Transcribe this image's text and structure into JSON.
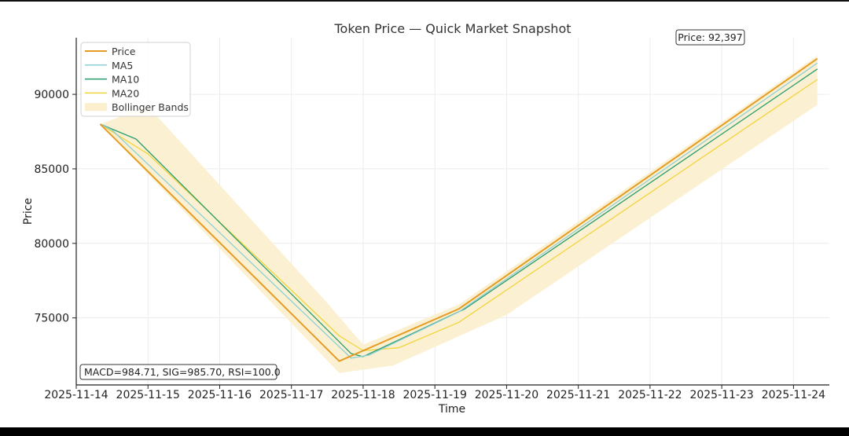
{
  "chart_data": {
    "type": "line",
    "title": "Token Price — Quick Market Snapshot",
    "xlabel": "Time",
    "ylabel": "Price",
    "xlim": [
      "2025-11-14",
      "2025-11-24T12:00"
    ],
    "ylim": [
      70500,
      93800
    ],
    "x_ticks": [
      "2025-11-14",
      "2025-11-15",
      "2025-11-16",
      "2025-11-17",
      "2025-11-18",
      "2025-11-19",
      "2025-11-20",
      "2025-11-21",
      "2025-11-22",
      "2025-11-23",
      "2025-11-24"
    ],
    "y_ticks": [
      75000,
      80000,
      85000,
      90000
    ],
    "grid": true,
    "legend_position": "top-left",
    "series": [
      {
        "name": "Price",
        "color": "#e69c24",
        "points": [
          [
            "2025-11-14T08:00",
            88000
          ],
          [
            "2025-11-17T16:00",
            72100
          ],
          [
            "2025-11-19T08:00",
            75600
          ],
          [
            "2025-11-24T08:00",
            92397
          ]
        ]
      },
      {
        "name": "MA5",
        "color": "#8ecfd8",
        "points": [
          [
            "2025-11-14T08:00",
            88000
          ],
          [
            "2025-11-14T12:00",
            87600
          ],
          [
            "2025-11-17T20:00",
            72300
          ],
          [
            "2025-11-18T02:00",
            72500
          ],
          [
            "2025-11-19T08:00",
            75400
          ],
          [
            "2025-11-24T08:00",
            92100
          ]
        ]
      },
      {
        "name": "MA10",
        "color": "#2a9d6e",
        "points": [
          [
            "2025-11-14T08:00",
            88000
          ],
          [
            "2025-11-14T20:00",
            87000
          ],
          [
            "2025-11-17T20:00",
            72600
          ],
          [
            "2025-11-18T00:00",
            72400
          ],
          [
            "2025-11-19T10:00",
            75600
          ],
          [
            "2025-11-24T08:00",
            91700
          ]
        ]
      },
      {
        "name": "MA20",
        "color": "#f2d43c",
        "points": [
          [
            "2025-11-14T08:00",
            88000
          ],
          [
            "2025-11-15T00:00",
            86000
          ],
          [
            "2025-11-17T16:00",
            73800
          ],
          [
            "2025-11-18T00:00",
            72800
          ],
          [
            "2025-11-18T12:00",
            73000
          ],
          [
            "2025-11-19T08:00",
            74700
          ],
          [
            "2025-11-24T08:00",
            91000
          ]
        ]
      }
    ],
    "bands": {
      "name": "Bollinger Bands",
      "color": "#fbefcd",
      "upper": [
        [
          "2025-11-14T08:00",
          88000
        ],
        [
          "2025-11-15T00:00",
          89200
        ],
        [
          "2025-11-17T12:00",
          76000
        ],
        [
          "2025-11-18T00:00",
          73200
        ],
        [
          "2025-11-19T08:00",
          75900
        ],
        [
          "2025-11-24T08:00",
          92600
        ]
      ],
      "lower": [
        [
          "2025-11-24T08:00",
          89300
        ],
        [
          "2025-11-20T00:00",
          75200
        ],
        [
          "2025-11-18T10:00",
          71800
        ],
        [
          "2025-11-17T16:00",
          71300
        ],
        [
          "2025-11-14T08:00",
          88000
        ]
      ]
    },
    "annotations": {
      "price_box": "Price: 92,397",
      "indicators_box": "MACD=984.71, SIG=985.70, RSI=100.0"
    }
  }
}
